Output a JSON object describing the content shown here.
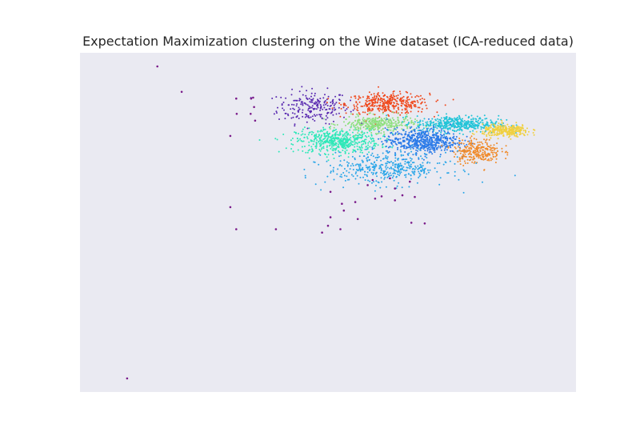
{
  "chart_data": {
    "type": "scatter",
    "title": "Expectation Maximization clustering on the Wine dataset (ICA-reduced data)",
    "xlabel": "",
    "ylabel": "",
    "axis_ticks_visible": false,
    "grid": false,
    "background_color": "#eaeaf2",
    "xlim": [
      0,
      100
    ],
    "ylim": [
      0,
      100
    ],
    "series": [
      {
        "color": "#5a2ab0",
        "center": [
          47,
          84
        ],
        "spread": [
          6,
          4
        ],
        "count": 220
      },
      {
        "color": "#f04a1e",
        "center": [
          62,
          85
        ],
        "spread": [
          7,
          2.5
        ],
        "count": 380
      },
      {
        "color": "#2ee8b8",
        "center": [
          52,
          74
        ],
        "spread": [
          7,
          3
        ],
        "count": 520
      },
      {
        "color": "#8ee07e",
        "center": [
          60,
          79
        ],
        "spread": [
          6,
          2
        ],
        "count": 330
      },
      {
        "color": "#22c4d8",
        "center": [
          76,
          79
        ],
        "spread": [
          7,
          2
        ],
        "count": 440
      },
      {
        "color": "#2a7ae8",
        "center": [
          69,
          74
        ],
        "spread": [
          6,
          3
        ],
        "count": 560
      },
      {
        "color": "#f08a2a",
        "center": [
          80,
          71
        ],
        "spread": [
          4,
          3
        ],
        "count": 260
      },
      {
        "color": "#f0d040",
        "center": [
          86,
          77
        ],
        "spread": [
          4,
          1.5
        ],
        "count": 300
      },
      {
        "color": "#2aa6e8",
        "center": [
          62,
          66
        ],
        "spread": [
          10,
          4
        ],
        "count": 420
      },
      {
        "color": "#7a1a8a",
        "points": [
          [
            15.6,
            96
          ],
          [
            20.5,
            88.5
          ],
          [
            31.5,
            86.5
          ],
          [
            31.6,
            82
          ],
          [
            34.4,
            82
          ],
          [
            34.5,
            86.5
          ],
          [
            34.9,
            86.8
          ],
          [
            35.1,
            84
          ],
          [
            35.3,
            80
          ],
          [
            30.3,
            75.5
          ],
          [
            30.3,
            54.5
          ],
          [
            31.5,
            48
          ],
          [
            39.5,
            48
          ],
          [
            50.5,
            51.5
          ],
          [
            50.5,
            59
          ],
          [
            52.5,
            48
          ],
          [
            52.8,
            55.5
          ],
          [
            53.2,
            53.5
          ],
          [
            55.5,
            56
          ],
          [
            58,
            61
          ],
          [
            59,
            62.5
          ],
          [
            59.5,
            57
          ],
          [
            60.8,
            57.7
          ],
          [
            62.5,
            63
          ],
          [
            63.5,
            56.5
          ],
          [
            63.5,
            60
          ],
          [
            66.5,
            62
          ],
          [
            65,
            58
          ],
          [
            67.5,
            57.5
          ],
          [
            69.5,
            49.7
          ],
          [
            66.8,
            49.9
          ],
          [
            56,
            51
          ],
          [
            48.8,
            47
          ],
          [
            50,
            49
          ],
          [
            9.5,
            4
          ]
        ]
      }
    ]
  }
}
